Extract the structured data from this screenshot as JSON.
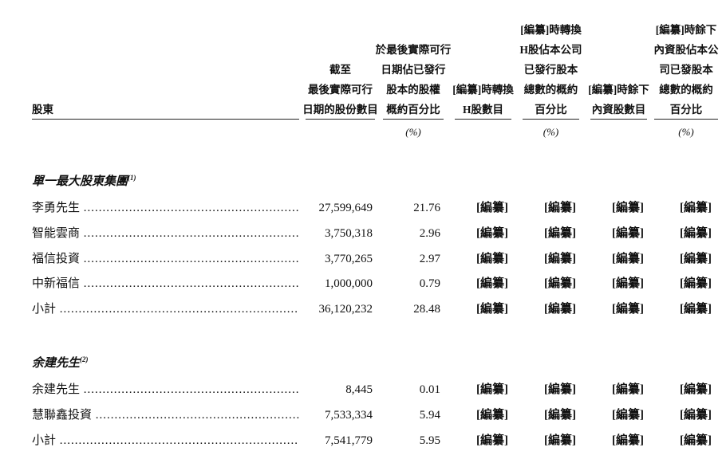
{
  "header": {
    "shareholder": "股東",
    "columns": [
      {
        "lines": [
          "截至",
          "最後實際可行",
          "日期的股份數目"
        ],
        "unit": ""
      },
      {
        "lines": [
          "於最後實際可行",
          "日期佔已發行",
          "股本的股權",
          "概約百分比"
        ],
        "unit": "(%)"
      },
      {
        "lines": [
          "[編纂]時轉換",
          "H股數目"
        ],
        "unit": ""
      },
      {
        "lines": [
          "[編纂]時轉換",
          "H股佔本公司",
          "已發行股本",
          "總數的概約",
          "百分比"
        ],
        "unit": "(%)"
      },
      {
        "lines": [
          "[編纂]時餘下",
          "內資股數目"
        ],
        "unit": ""
      },
      {
        "lines": [
          "[編纂]時餘下",
          "內資股佔本公",
          "司已發股本",
          "總數的概約",
          "百分比"
        ],
        "unit": "(%)"
      }
    ]
  },
  "sections": [
    {
      "title": "單一最大股東集團",
      "note": "(1)",
      "rows": [
        {
          "name": "李勇先生",
          "shares": "27,599,649",
          "pct": "21.76",
          "redacted": [
            "[編纂]",
            "[編纂]",
            "[編纂]",
            "[編纂]"
          ]
        },
        {
          "name": "智能雲商",
          "shares": "3,750,318",
          "pct": "2.96",
          "redacted": [
            "[編纂]",
            "[編纂]",
            "[編纂]",
            "[編纂]"
          ]
        },
        {
          "name": "福信投資",
          "shares": "3,770,265",
          "pct": "2.97",
          "redacted": [
            "[編纂]",
            "[編纂]",
            "[編纂]",
            "[編纂]"
          ]
        },
        {
          "name": "中新福信",
          "shares": "1,000,000",
          "pct": "0.79",
          "redacted": [
            "[編纂]",
            "[編纂]",
            "[編纂]",
            "[編纂]"
          ]
        },
        {
          "name": "小計",
          "shares": "36,120,232",
          "pct": "28.48",
          "redacted": [
            "[編纂]",
            "[編纂]",
            "[編纂]",
            "[編纂]"
          ]
        }
      ]
    },
    {
      "title": "余建先生",
      "note": "(2)",
      "rows": [
        {
          "name": "余建先生",
          "shares": "8,445",
          "pct": "0.01",
          "redacted": [
            "[編纂]",
            "[編纂]",
            "[編纂]",
            "[編纂]"
          ]
        },
        {
          "name": "慧聯鑫投資",
          "shares": "7,533,334",
          "pct": "5.94",
          "redacted": [
            "[編纂]",
            "[編纂]",
            "[編纂]",
            "[編纂]"
          ]
        },
        {
          "name": "小計",
          "shares": "7,541,779",
          "pct": "5.95",
          "redacted": [
            "[編纂]",
            "[編纂]",
            "[編纂]",
            "[編纂]"
          ]
        }
      ]
    }
  ]
}
